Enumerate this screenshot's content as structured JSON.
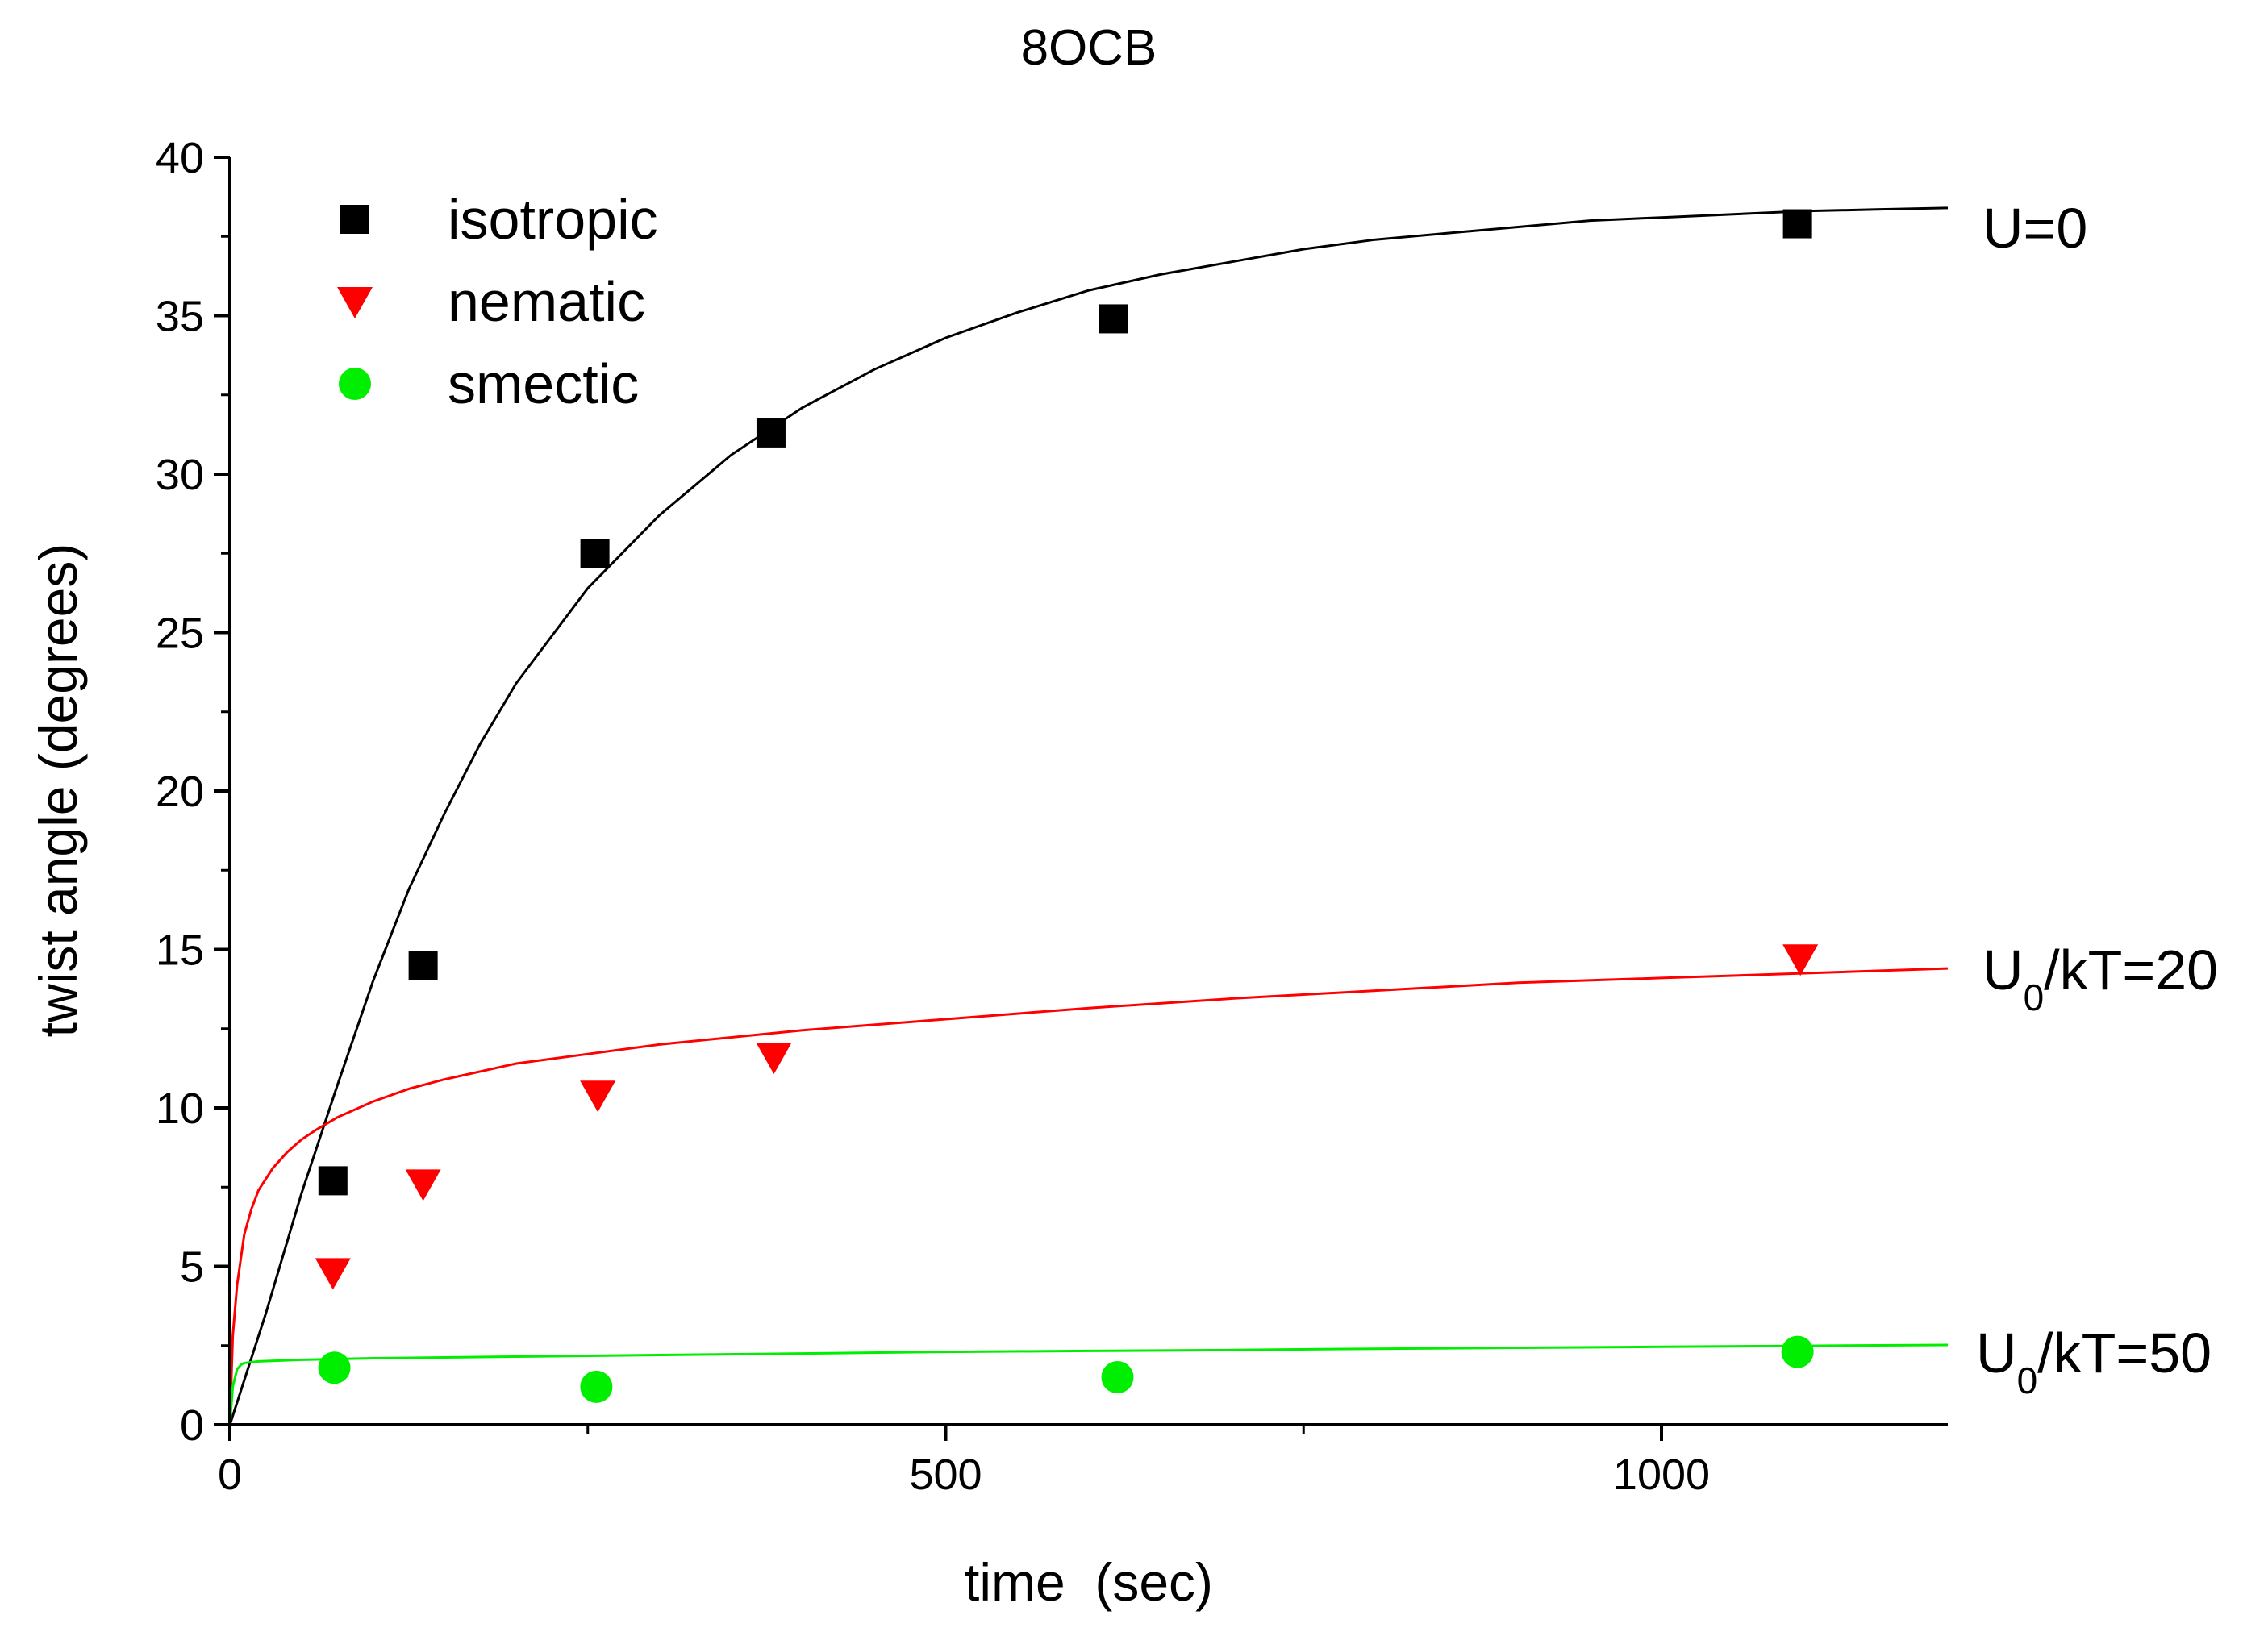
{
  "chart_data": {
    "type": "scatter",
    "title": "8OCB",
    "xlabel": "time  (sec)",
    "ylabel": "twist angle (degrees)",
    "xlim": [
      0,
      1200
    ],
    "ylim": [
      0,
      40
    ],
    "x_ticks": [
      0,
      500,
      1000
    ],
    "x_tick_labels": [
      "0",
      "500",
      "1000"
    ],
    "x_minor_ticks": [
      250,
      750
    ],
    "y_ticks": [
      0,
      5,
      10,
      15,
      20,
      25,
      30,
      35,
      40
    ],
    "y_tick_labels": [
      "0",
      "5",
      "10",
      "15",
      "20",
      "25",
      "30",
      "35",
      "40"
    ],
    "grid": false,
    "legend_position": "top-left",
    "series": [
      {
        "name": "isotropic",
        "marker": "square",
        "color": "#000000",
        "x": [
          72,
          135,
          255,
          378,
          617,
          1095
        ],
        "y": [
          7.7,
          14.5,
          27.5,
          31.3,
          34.9,
          37.9
        ]
      },
      {
        "name": "nematic",
        "marker": "triangle-down",
        "color": "#ff0000",
        "x": [
          72,
          135,
          257,
          380,
          1097
        ],
        "y": [
          4.8,
          7.6,
          10.4,
          11.6,
          14.7
        ]
      },
      {
        "name": "smectic",
        "marker": "circle",
        "color": "#00ee00",
        "x": [
          73,
          256,
          620,
          1095
        ],
        "y": [
          1.8,
          1.2,
          1.5,
          2.3
        ]
      }
    ],
    "fit_curves": [
      {
        "label": "U=0",
        "label_parts": [
          "U=0"
        ],
        "color": "#000000",
        "x": [
          0,
          25,
          50,
          75,
          100,
          125,
          150,
          175,
          200,
          250,
          300,
          350,
          400,
          450,
          500,
          550,
          600,
          650,
          700,
          750,
          800,
          850,
          900,
          950,
          1000,
          1050,
          1100,
          1150,
          1200
        ],
        "y": [
          0,
          3.5,
          7.3,
          10.7,
          14.0,
          16.9,
          19.3,
          21.5,
          23.4,
          26.4,
          28.7,
          30.6,
          32.1,
          33.3,
          34.3,
          35.1,
          35.8,
          36.3,
          36.7,
          37.1,
          37.4,
          37.6,
          37.8,
          38.0,
          38.1,
          38.2,
          38.3,
          38.35,
          38.4
        ]
      },
      {
        "label": "U0/kT=20",
        "label_parts": [
          "U",
          "0",
          "/kT=20"
        ],
        "color": "#ff0000",
        "x": [
          0,
          2,
          5,
          10,
          15,
          20,
          30,
          40,
          50,
          60,
          75,
          100,
          125,
          150,
          200,
          250,
          300,
          400,
          500,
          600,
          700,
          800,
          900,
          1000,
          1100,
          1200
        ],
        "y": [
          0,
          2.8,
          4.4,
          6.0,
          6.8,
          7.4,
          8.1,
          8.6,
          9.0,
          9.3,
          9.7,
          10.2,
          10.6,
          10.9,
          11.4,
          11.7,
          12.0,
          12.45,
          12.8,
          13.15,
          13.45,
          13.7,
          13.95,
          14.1,
          14.25,
          14.4
        ]
      },
      {
        "label": "U0/kT=50",
        "label_parts": [
          "U",
          "0",
          "/kT=50"
        ],
        "color": "#00ee00",
        "x": [
          0,
          2,
          5,
          8,
          10,
          20,
          50,
          100,
          200,
          300,
          400,
          500,
          600,
          700,
          800,
          900,
          1000,
          1100,
          1200
        ],
        "y": [
          0,
          1.2,
          1.75,
          1.9,
          1.95,
          2.0,
          2.05,
          2.1,
          2.15,
          2.2,
          2.25,
          2.3,
          2.33,
          2.36,
          2.4,
          2.43,
          2.46,
          2.49,
          2.52
        ]
      }
    ]
  }
}
